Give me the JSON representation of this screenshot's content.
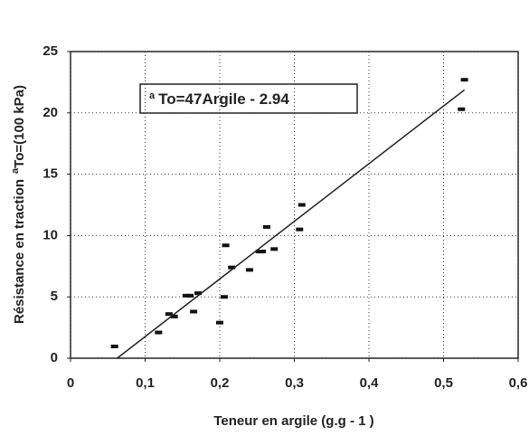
{
  "chart_data": {
    "type": "scatter",
    "x_label": "Teneur en argile (g.g - 1 )",
    "y_label": [
      "Résistance en traction",
      "a",
      "To=(100 kPa)"
    ],
    "annotation": [
      "a",
      "To=47Argile - 2.94"
    ],
    "fit": {
      "slope": 47,
      "intercept": -2.94
    },
    "color": "#111111",
    "x": [
      0.059,
      0.118,
      0.132,
      0.139,
      0.155,
      0.16,
      0.165,
      0.171,
      0.2,
      0.206,
      0.208,
      0.216,
      0.24,
      0.253,
      0.257,
      0.263,
      0.273,
      0.307,
      0.31,
      0.524,
      0.528
    ],
    "values": [
      0.96,
      2.1,
      3.6,
      3.4,
      5.1,
      5.1,
      3.8,
      5.3,
      2.9,
      5.0,
      9.2,
      7.4,
      7.2,
      8.7,
      8.7,
      10.7,
      8.9,
      10.5,
      12.5,
      20.3,
      22.7
    ],
    "xlim": [
      0,
      0.6
    ],
    "xticks": [
      0,
      {
        "value": 0.1,
        "label": "0,1"
      },
      {
        "value": 0.2,
        "label": "0,2"
      },
      {
        "value": 0.3,
        "label": "0,3"
      },
      {
        "value": 0.4,
        "label": "0,4"
      },
      {
        "value": 0.5,
        "label": "0,5"
      },
      {
        "value": 0.6,
        "label": "0,6"
      }
    ],
    "ylim": [
      0,
      25
    ],
    "yticks": [
      0,
      5,
      10,
      15,
      20,
      25
    ],
    "grid": true
  }
}
